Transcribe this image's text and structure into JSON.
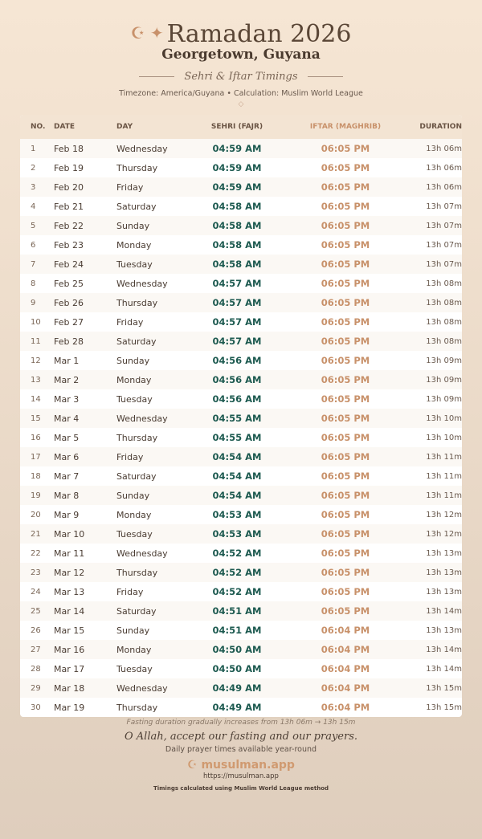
{
  "header": {
    "icons": "☪ ✦",
    "title": "Ramadan 2026",
    "city": "Georgetown, Guyana",
    "subtitle": "Sehri & Iftar Timings",
    "meta": "Timezone: America/Guyana • Calculation: Muslim World League",
    "ornament": "◇"
  },
  "table": {
    "headers": [
      "NO.",
      "DATE",
      "DAY",
      "SEHRI (FAJR)",
      "IFTAR (MAGHRIB)",
      "DURATION"
    ],
    "rows": [
      [
        "1",
        "Feb 18",
        "Wednesday",
        "04:59 AM",
        "06:05 PM",
        "13h 06m"
      ],
      [
        "2",
        "Feb 19",
        "Thursday",
        "04:59 AM",
        "06:05 PM",
        "13h 06m"
      ],
      [
        "3",
        "Feb 20",
        "Friday",
        "04:59 AM",
        "06:05 PM",
        "13h 06m"
      ],
      [
        "4",
        "Feb 21",
        "Saturday",
        "04:58 AM",
        "06:05 PM",
        "13h 07m"
      ],
      [
        "5",
        "Feb 22",
        "Sunday",
        "04:58 AM",
        "06:05 PM",
        "13h 07m"
      ],
      [
        "6",
        "Feb 23",
        "Monday",
        "04:58 AM",
        "06:05 PM",
        "13h 07m"
      ],
      [
        "7",
        "Feb 24",
        "Tuesday",
        "04:58 AM",
        "06:05 PM",
        "13h 07m"
      ],
      [
        "8",
        "Feb 25",
        "Wednesday",
        "04:57 AM",
        "06:05 PM",
        "13h 08m"
      ],
      [
        "9",
        "Feb 26",
        "Thursday",
        "04:57 AM",
        "06:05 PM",
        "13h 08m"
      ],
      [
        "10",
        "Feb 27",
        "Friday",
        "04:57 AM",
        "06:05 PM",
        "13h 08m"
      ],
      [
        "11",
        "Feb 28",
        "Saturday",
        "04:57 AM",
        "06:05 PM",
        "13h 08m"
      ],
      [
        "12",
        "Mar 1",
        "Sunday",
        "04:56 AM",
        "06:05 PM",
        "13h 09m"
      ],
      [
        "13",
        "Mar 2",
        "Monday",
        "04:56 AM",
        "06:05 PM",
        "13h 09m"
      ],
      [
        "14",
        "Mar 3",
        "Tuesday",
        "04:56 AM",
        "06:05 PM",
        "13h 09m"
      ],
      [
        "15",
        "Mar 4",
        "Wednesday",
        "04:55 AM",
        "06:05 PM",
        "13h 10m"
      ],
      [
        "16",
        "Mar 5",
        "Thursday",
        "04:55 AM",
        "06:05 PM",
        "13h 10m"
      ],
      [
        "17",
        "Mar 6",
        "Friday",
        "04:54 AM",
        "06:05 PM",
        "13h 11m"
      ],
      [
        "18",
        "Mar 7",
        "Saturday",
        "04:54 AM",
        "06:05 PM",
        "13h 11m"
      ],
      [
        "19",
        "Mar 8",
        "Sunday",
        "04:54 AM",
        "06:05 PM",
        "13h 11m"
      ],
      [
        "20",
        "Mar 9",
        "Monday",
        "04:53 AM",
        "06:05 PM",
        "13h 12m"
      ],
      [
        "21",
        "Mar 10",
        "Tuesday",
        "04:53 AM",
        "06:05 PM",
        "13h 12m"
      ],
      [
        "22",
        "Mar 11",
        "Wednesday",
        "04:52 AM",
        "06:05 PM",
        "13h 13m"
      ],
      [
        "23",
        "Mar 12",
        "Thursday",
        "04:52 AM",
        "06:05 PM",
        "13h 13m"
      ],
      [
        "24",
        "Mar 13",
        "Friday",
        "04:52 AM",
        "06:05 PM",
        "13h 13m"
      ],
      [
        "25",
        "Mar 14",
        "Saturday",
        "04:51 AM",
        "06:05 PM",
        "13h 14m"
      ],
      [
        "26",
        "Mar 15",
        "Sunday",
        "04:51 AM",
        "06:04 PM",
        "13h 13m"
      ],
      [
        "27",
        "Mar 16",
        "Monday",
        "04:50 AM",
        "06:04 PM",
        "13h 14m"
      ],
      [
        "28",
        "Mar 17",
        "Tuesday",
        "04:50 AM",
        "06:04 PM",
        "13h 14m"
      ],
      [
        "29",
        "Mar 18",
        "Wednesday",
        "04:49 AM",
        "06:04 PM",
        "13h 15m"
      ],
      [
        "30",
        "Mar 19",
        "Thursday",
        "04:49 AM",
        "06:04 PM",
        "13h 15m"
      ]
    ]
  },
  "footer": {
    "note": "Fasting duration gradually increases from 13h 06m → 13h 15m",
    "dua": "O Allah, accept our fasting and our prayers.",
    "daily": "Daily prayer times available year-round",
    "brand": "☪ musulman.app",
    "url": "https://musulman.app",
    "calc": "Timings calculated using Muslim World League method"
  },
  "colors": {
    "sehri": "#1d5a50",
    "iftar": "#c8916a",
    "accent": "#c8916a"
  }
}
